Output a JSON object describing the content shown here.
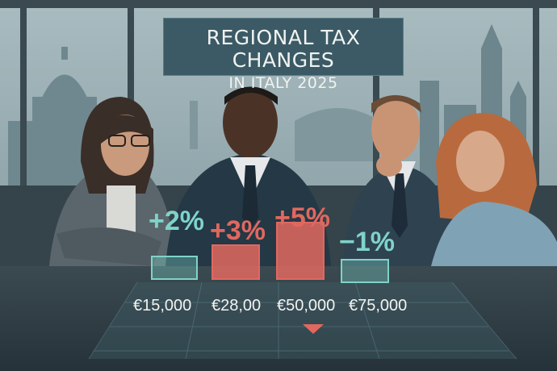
{
  "title": {
    "line1": "REGIONAL TAX CHANGES",
    "line2": "IN ITALY  2025"
  },
  "chart_data": {
    "type": "bar",
    "categories": [
      "€15,000",
      "€28,00",
      "€50,000",
      "€75,000"
    ],
    "values": [
      2,
      3,
      5,
      -1
    ],
    "value_labels": [
      "+2%",
      "+3%",
      "+5%",
      "−1%"
    ],
    "bar_colors": [
      "#7fd3c9",
      "#e0685f",
      "#e0685f",
      "#7fd3c9"
    ]
  },
  "colors": {
    "increase": "#e0685f",
    "small_change": "#7fd3c9",
    "title_bg": "#3b5a66"
  }
}
